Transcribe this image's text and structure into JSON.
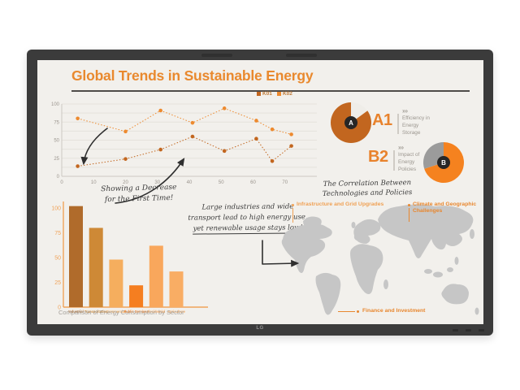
{
  "title": "Global Trends in Sustainable Energy",
  "chart_data": [
    {
      "type": "line",
      "x": [
        5,
        20,
        31,
        41,
        51,
        61,
        66,
        72
      ],
      "series": [
        {
          "name": "K01",
          "color": "#C2661F",
          "values": [
            14,
            24,
            37,
            55,
            35,
            52,
            21,
            42
          ]
        },
        {
          "name": "K02",
          "color": "#ED8A2F",
          "values": [
            80,
            62,
            91,
            74,
            94,
            77,
            65,
            58
          ]
        }
      ],
      "xlim": [
        0,
        80
      ],
      "ylim": [
        0,
        100
      ],
      "xticks": [
        0,
        10,
        20,
        30,
        40,
        50,
        60,
        70
      ],
      "yticks": [
        0,
        25,
        50,
        75,
        100
      ],
      "grid": true,
      "line_style": "dotted",
      "legend_position": "top-right"
    },
    {
      "type": "bar",
      "categories": [
        "Industrial",
        "Transportation",
        "Commercial",
        "Public Services",
        "Residential",
        "Agriculture"
      ],
      "values": [
        102,
        80,
        48,
        22,
        62,
        36
      ],
      "bar_colors": [
        "#B06B2B",
        "#CE8936",
        "#F5AE5E",
        "#F57E20",
        "#F9A75C",
        "#F9AD64"
      ],
      "title": "Comparison of Energy Consumption by Sector",
      "xlabel": "",
      "ylabel": "",
      "ylim": [
        0,
        105
      ],
      "yticks": [
        0,
        25,
        50,
        75,
        100
      ],
      "axis_color": "#F0A35A"
    },
    {
      "type": "pie",
      "title": "A1 Efficiency in Energy Storage",
      "center_letter": "A",
      "start_angle": 54,
      "slices": [
        {
          "label": "filled",
          "value": 85,
          "color": "#C2661F"
        },
        {
          "label": "gap",
          "value": 15,
          "color": "#EFEDE8"
        }
      ]
    },
    {
      "type": "pie",
      "title": "B2 Impact of Energy Policies",
      "center_letter": "B",
      "start_angle": 0,
      "slices": [
        {
          "label": "filled",
          "value": 70,
          "color": "#F5821F"
        },
        {
          "label": "remainder",
          "value": 30,
          "color": "#9B9B9B"
        }
      ]
    }
  ],
  "stats": [
    {
      "id": "A1",
      "chevrons": "›››",
      "description": "Efficiency in Energy Storage"
    },
    {
      "id": "B2",
      "chevrons": "›››",
      "description": "Impact of Energy Policies"
    }
  ],
  "annotations": {
    "decrease_note": [
      "Showing a Decrease",
      "for the First Time!"
    ],
    "industry_note": [
      "Large industries and wide",
      "transport lead to high energy use,",
      "yet renewable usage stays low!"
    ],
    "correlation_note": [
      "The Correlation Between",
      "Technologies and Policies"
    ]
  },
  "map": {
    "labels": [
      {
        "text": "Infrastructure and Grid Upgrades",
        "color": "#F0A155"
      },
      {
        "text": "Climate and Geographic Challenges",
        "color": "#E8872F"
      },
      {
        "text": "Finance and Investment",
        "color": "#E8872F"
      }
    ]
  },
  "device": {
    "logo": "LG"
  },
  "colors": {
    "accent_orange": "#E9892E",
    "title_rule": "#4F4C49",
    "screen_bg": "#F2F0EC",
    "bezel": "#3B3B3B",
    "map_gray": "#C6C6C6",
    "ink": "#2F2F2F"
  }
}
